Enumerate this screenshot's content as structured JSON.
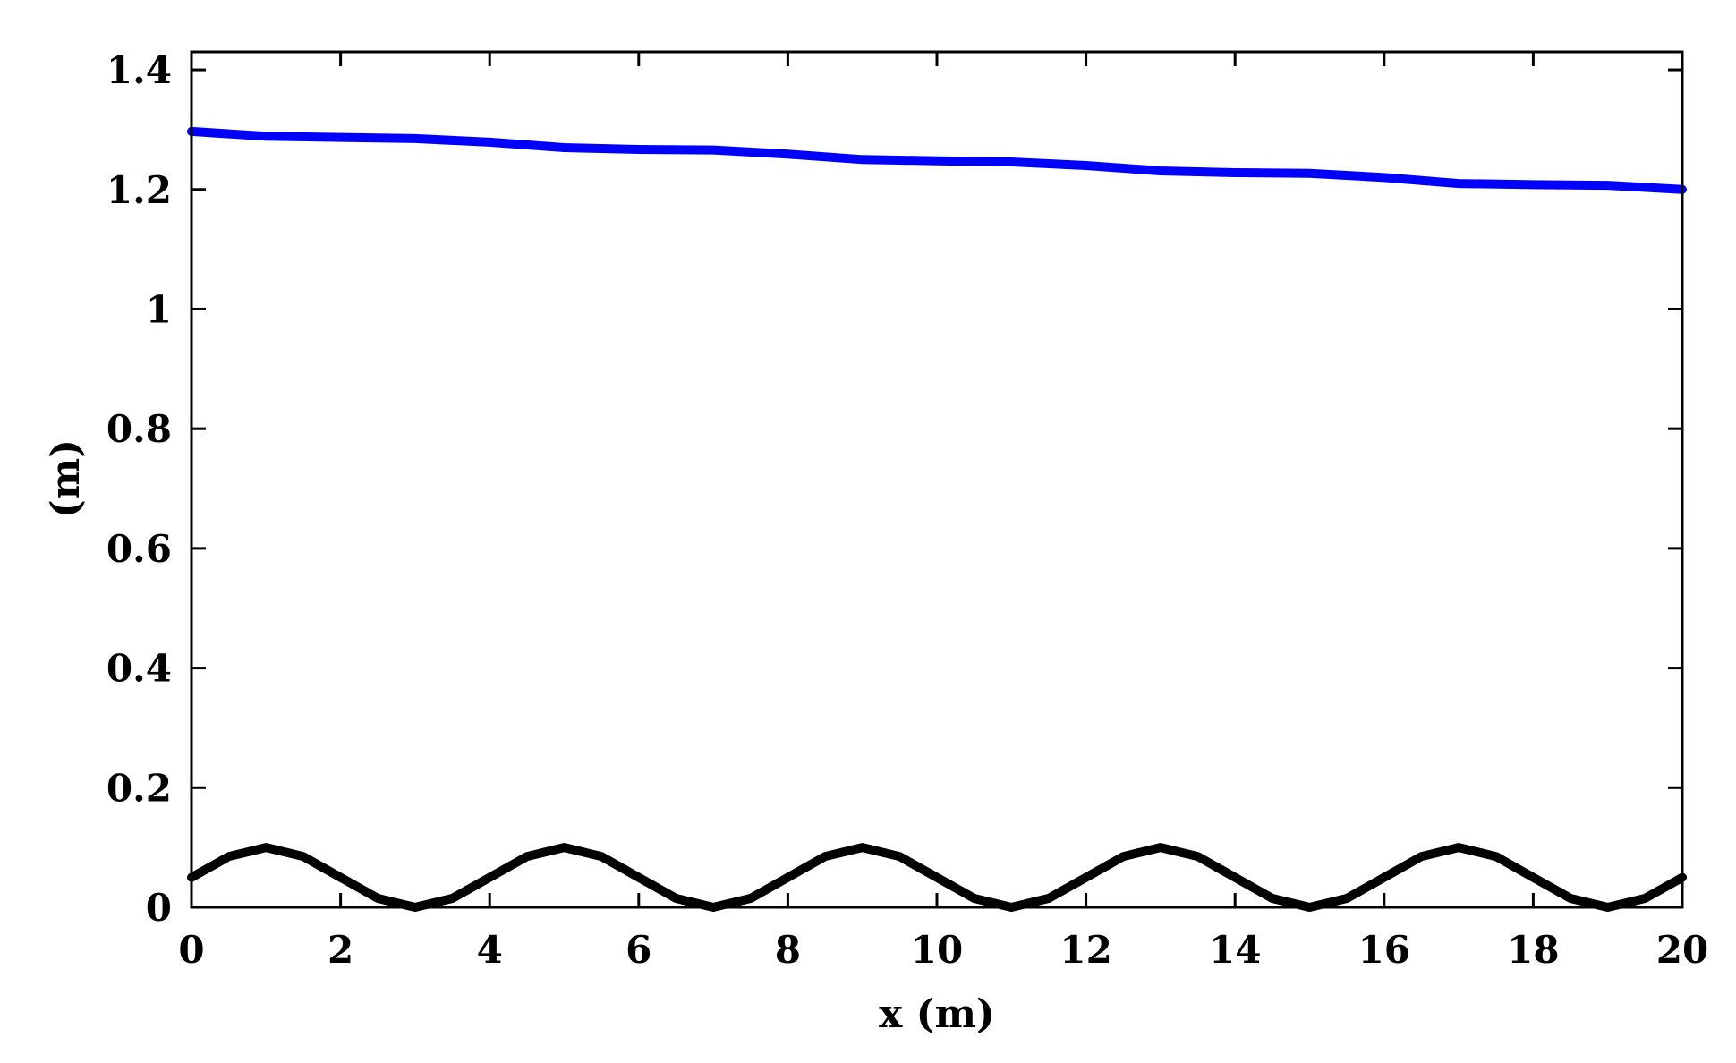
{
  "chart_data": {
    "type": "line",
    "title": "",
    "xlabel": "x (m)",
    "ylabel": "(m)",
    "xlim": [
      0,
      20
    ],
    "ylim": [
      0,
      1.43
    ],
    "xticks": [
      0,
      2,
      4,
      6,
      8,
      10,
      12,
      14,
      16,
      18,
      20
    ],
    "xtick_labels": [
      "0",
      "2",
      "4",
      "6",
      "8",
      "10",
      "12",
      "14",
      "16",
      "18",
      "20"
    ],
    "yticks": [
      0,
      0.2,
      0.4,
      0.6,
      0.8,
      1.0,
      1.2,
      1.4
    ],
    "ytick_labels": [
      "0",
      "0.2",
      "0.4",
      "0.6",
      "0.8",
      "1",
      "1.2",
      "1.4"
    ],
    "grid": false,
    "series": [
      {
        "color": "#0000ff",
        "x": [
          0,
          1,
          2,
          3,
          4,
          5,
          6,
          7,
          8,
          9,
          10,
          11,
          12,
          13,
          14,
          15,
          16,
          17,
          18,
          19,
          20
        ],
        "y": [
          1.297,
          1.289,
          1.287,
          1.285,
          1.279,
          1.27,
          1.267,
          1.266,
          1.259,
          1.25,
          1.248,
          1.246,
          1.24,
          1.231,
          1.228,
          1.227,
          1.22,
          1.21,
          1.208,
          1.207,
          1.2
        ]
      },
      {
        "color": "#000000",
        "x": [
          0,
          0.5,
          1,
          1.5,
          2,
          2.5,
          3,
          3.5,
          4,
          4.5,
          5,
          5.5,
          6,
          6.5,
          7,
          7.5,
          8,
          8.5,
          9,
          9.5,
          10,
          10.5,
          11,
          11.5,
          12,
          12.5,
          13,
          13.5,
          14,
          14.5,
          15,
          15.5,
          16,
          16.5,
          17,
          17.5,
          18,
          18.5,
          19,
          19.5,
          20
        ],
        "y": [
          0.05,
          0.085,
          0.1,
          0.085,
          0.05,
          0.015,
          0,
          0.015,
          0.05,
          0.085,
          0.1,
          0.085,
          0.05,
          0.015,
          0,
          0.015,
          0.05,
          0.085,
          0.1,
          0.085,
          0.05,
          0.015,
          0,
          0.015,
          0.05,
          0.085,
          0.1,
          0.085,
          0.05,
          0.015,
          0,
          0.015,
          0.05,
          0.085,
          0.1,
          0.085,
          0.05,
          0.015,
          0,
          0.015,
          0.05
        ]
      }
    ]
  }
}
